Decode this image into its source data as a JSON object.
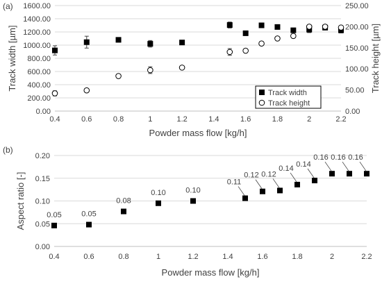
{
  "panels": {
    "a": {
      "label": "(a)"
    },
    "b": {
      "label": "(b)"
    }
  },
  "chart_data": [
    {
      "type": "scatter",
      "panel": "a",
      "xlabel": "Powder mass flow [kg/h]",
      "ylabel": "Track width [µm]",
      "y2label": "Track height [µm]",
      "xlim": [
        0.4,
        2.2
      ],
      "ylim": [
        0,
        1600
      ],
      "y2lim": [
        0,
        250
      ],
      "xticks": [
        "0.4",
        "0.6",
        "0.8",
        "1",
        "1.2",
        "1.4",
        "1.6",
        "1.8",
        "2",
        "2.2"
      ],
      "yticks": [
        "0.00",
        "200.00",
        "400.00",
        "600.00",
        "800.00",
        "1000.00",
        "1200.00",
        "1400.00",
        "1600.00"
      ],
      "y2ticks": [
        "0.00",
        "50.00",
        "100.00",
        "150.00",
        "200.00",
        "250.00"
      ],
      "grid": true,
      "legend_position": "bottom-right",
      "series": [
        {
          "name": "Track width",
          "axis": "left",
          "marker": "filled-square",
          "x": [
            0.4,
            0.6,
            0.8,
            1.0,
            1.2,
            1.5,
            1.6,
            1.7,
            1.8,
            1.9,
            2.0,
            2.1,
            2.2
          ],
          "y": [
            920,
            1045,
            1080,
            1020,
            1040,
            1305,
            1180,
            1300,
            1275,
            1225,
            1235,
            1265,
            1225
          ],
          "err": [
            70,
            90,
            0,
            50,
            0,
            45,
            0,
            0,
            0,
            0,
            45,
            30,
            40
          ]
        },
        {
          "name": "Track height",
          "axis": "right",
          "marker": "open-circle",
          "x": [
            0.4,
            0.6,
            0.8,
            1.0,
            1.2,
            1.5,
            1.6,
            1.7,
            1.8,
            1.9,
            2.0,
            2.1,
            2.2
          ],
          "y": [
            42,
            49,
            83,
            97,
            103,
            140,
            143,
            160,
            172,
            178,
            200,
            200,
            198
          ],
          "err": [
            6,
            0,
            0,
            8,
            0,
            8,
            0,
            0,
            0,
            0,
            0,
            0,
            0
          ]
        }
      ]
    },
    {
      "type": "scatter",
      "panel": "b",
      "xlabel": "Powder mass flow [kg/h]",
      "ylabel": "Aspect ratio [-]",
      "xlim": [
        0.4,
        2.2
      ],
      "ylim": [
        0,
        0.2
      ],
      "xticks": [
        "0.4",
        "0.6",
        "0.8",
        "1",
        "1.2",
        "1.4",
        "1.6",
        "1.8",
        "2",
        "2.2"
      ],
      "yticks": [
        "0.00",
        "0.05",
        "0.10",
        "0.15",
        "0.20"
      ],
      "grid": true,
      "series": [
        {
          "marker": "filled-square",
          "x": [
            0.4,
            0.6,
            0.8,
            1.0,
            1.2,
            1.5,
            1.6,
            1.7,
            1.8,
            1.9,
            2.0,
            2.1,
            2.2
          ],
          "y": [
            0.046,
            0.048,
            0.077,
            0.095,
            0.1,
            0.106,
            0.121,
            0.123,
            0.136,
            0.145,
            0.16,
            0.16,
            0.16
          ],
          "labels": [
            "0.05",
            "0.05",
            "0.08",
            "0.10",
            "0.10",
            "0.11",
            "0.12",
            "0.12",
            "0.14",
            "0.14",
            "0.16",
            "0.16",
            "0.16"
          ]
        }
      ]
    }
  ]
}
